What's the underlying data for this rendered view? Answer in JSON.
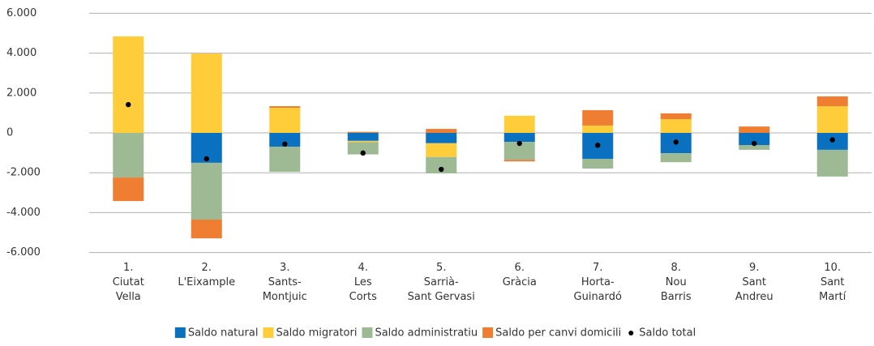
{
  "chart_data": {
    "type": "bar",
    "stacked": true,
    "categories": [
      "1.\nCiutat\nVella",
      "2.\nL'Eixample",
      "3.\nSants-\nMontjuic",
      "4.\nLes\nCorts",
      "5.\nSarrià-\nSant Gervasi",
      "6.\nGràcia",
      "7.\nHorta-\nGuinardó",
      "8.\nNou\nBarris",
      "9.\nSant\nAndreu",
      "10.\nSant\nMartí"
    ],
    "series": [
      {
        "name": "Saldo natural",
        "color": "#0a70c0",
        "values": [
          0,
          -1500,
          -690,
          -400,
          -520,
          -450,
          -1300,
          -1020,
          -610,
          -850
        ]
      },
      {
        "name": "Saldo migratori",
        "color": "#ffcc3a",
        "values": [
          4840,
          3980,
          1260,
          -60,
          -690,
          860,
          370,
          690,
          0,
          1340
        ]
      },
      {
        "name": "Saldo administratiu",
        "color": "#9dba95",
        "values": [
          -2240,
          -2850,
          -1260,
          -620,
          -820,
          -900,
          -490,
          -450,
          -240,
          -1340
        ]
      },
      {
        "name": "Saldo per canvi domicili",
        "color": "#ef7d32",
        "values": [
          -1180,
          -940,
          80,
          50,
          200,
          -80,
          770,
          290,
          320,
          490
        ]
      },
      {
        "name": "Saldo total",
        "color": "#000000",
        "marker": "dot",
        "values": [
          1420,
          -1300,
          -560,
          -1010,
          -1830,
          -530,
          -620,
          -460,
          -530,
          -350
        ]
      }
    ],
    "ylim": [
      -6000,
      6000
    ],
    "yticks": [
      {
        "value": -6000,
        "label": "-6.000"
      },
      {
        "value": -4000,
        "label": "-4.000"
      },
      {
        "value": -2000,
        "label": "-2.000"
      },
      0,
      {
        "value": 2000,
        "label": "2.000"
      },
      {
        "value": 4000,
        "label": "4.000"
      },
      {
        "value": 6000,
        "label": "6.000"
      }
    ],
    "grid": true,
    "legend": "bottom"
  }
}
